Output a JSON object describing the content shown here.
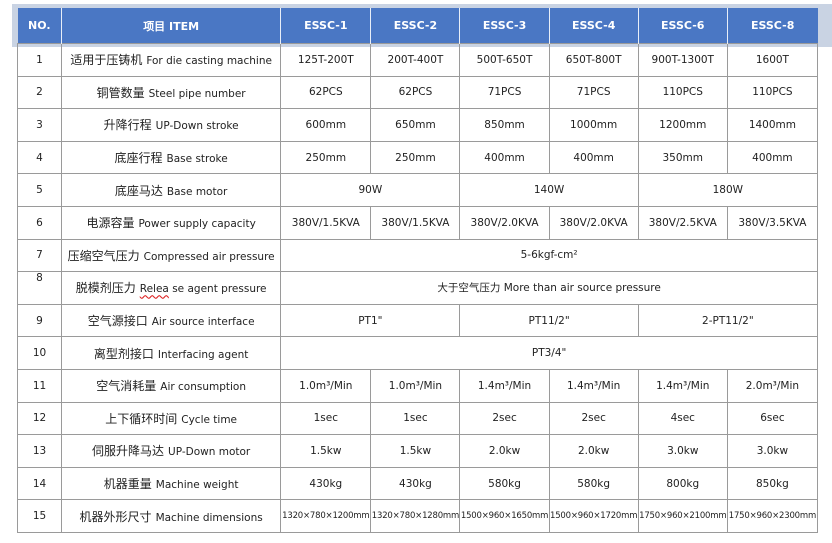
{
  "header": {
    "no": "NO.",
    "item": "项目 ITEM",
    "models": [
      "ESSC-1",
      "ESSC-2",
      "ESSC-3",
      "ESSC-4",
      "ESSC-6",
      "ESSC-8"
    ]
  },
  "rows": [
    {
      "no": "1",
      "cn": "适用于压铸机",
      "en": "For die casting machine",
      "cells": [
        "125T-200T",
        "200T-400T",
        "500T-650T",
        "650T-800T",
        "900T-1300T",
        "1600T"
      ]
    },
    {
      "no": "2",
      "cn": "铜管数量",
      "en": "Steel pipe number",
      "cells": [
        "62PCS",
        "62PCS",
        "71PCS",
        "71PCS",
        "110PCS",
        "110PCS"
      ]
    },
    {
      "no": "3",
      "cn": "升降行程",
      "en": "UP-Down stroke",
      "cells": [
        "600mm",
        "650mm",
        "850mm",
        "1000mm",
        "1200mm",
        "1400mm"
      ]
    },
    {
      "no": "4",
      "cn": "底座行程",
      "en": "Base stroke",
      "cells": [
        "250mm",
        "250mm",
        "400mm",
        "400mm",
        "350mm",
        "400mm"
      ]
    },
    {
      "no": "5",
      "cn": "底座马达",
      "en": "Base motor",
      "cells": [
        "90W",
        "140W",
        "180W"
      ]
    },
    {
      "no": "6",
      "cn": "电源容量",
      "en": "Power supply capacity",
      "cells": [
        "380V/1.5KVA",
        "380V/1.5KVA",
        "380V/2.0KVA",
        "380V/2.0KVA",
        "380V/2.5KVA",
        "380V/3.5KVA"
      ]
    },
    {
      "no": "7",
      "cn": "压缩空气压力",
      "en": "Compressed air pressure",
      "cells": [
        "5-6kgf-cm²"
      ]
    },
    {
      "no": "8",
      "cn": "脱模剂压力",
      "en_a": "Relea",
      "en_b": " se",
      "en_c": " agent pressure",
      "cells": [
        "大于空气压力 More than air source pressure"
      ]
    },
    {
      "no": "9",
      "cn": "空气源接口",
      "en": "Air source interface",
      "cells": [
        "PT1\"",
        "PT11/2\"",
        "2-PT11/2\""
      ]
    },
    {
      "no": "10",
      "cn": "离型剂接口",
      "en": "Interfacing agent",
      "cells": [
        "PT3/4\""
      ]
    },
    {
      "no": "11",
      "cn": "空气消耗量",
      "en": "Air consumption",
      "cells": [
        "1.0m³/Min",
        "1.0m³/Min",
        "1.4m³/Min",
        "1.4m³/Min",
        "1.4m³/Min",
        "2.0m³/Min"
      ]
    },
    {
      "no": "12",
      "cn": "上下循环时间",
      "en": "Cycle time",
      "cells": [
        "1sec",
        "1sec",
        "2sec",
        "2sec",
        "4sec",
        "6sec"
      ]
    },
    {
      "no": "13",
      "cn": "伺服升降马达",
      "en": "UP-Down motor",
      "cells": [
        "1.5kw",
        "1.5kw",
        "2.0kw",
        "2.0kw",
        "3.0kw",
        "3.0kw"
      ]
    },
    {
      "no": "14",
      "cn": "机器重量",
      "en": "Machine weight",
      "cells": [
        "430kg",
        "430kg",
        "580kg",
        "580kg",
        "800kg",
        "850kg"
      ]
    },
    {
      "no": "15",
      "cn": "机器外形尺寸",
      "en": "Machine dimensions",
      "cells": [
        "1320×780×1200mm",
        "1320×780×1280mm",
        "1500×960×1650mm",
        "1500×960×1720mm",
        "1750×960×2100mm",
        "1750×960×2300mm"
      ]
    }
  ]
}
